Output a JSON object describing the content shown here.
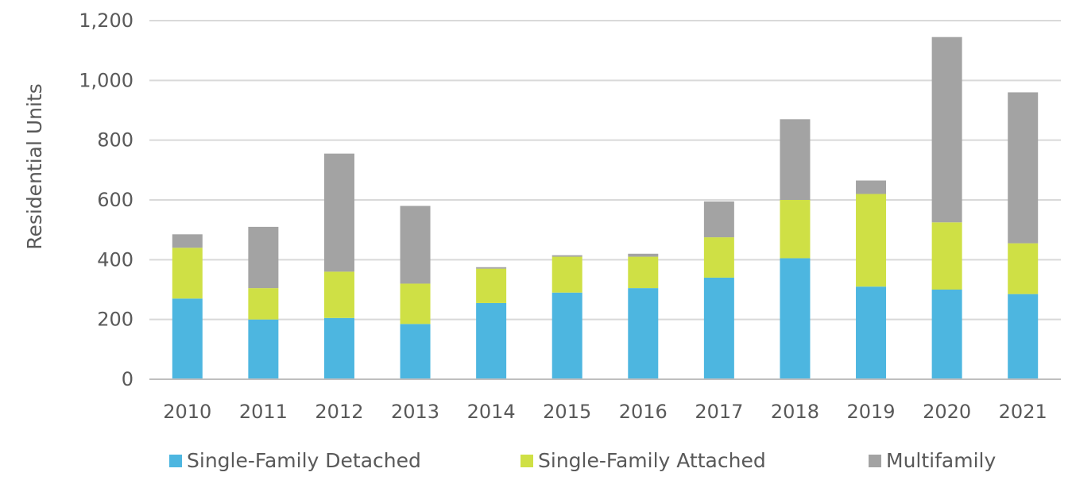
{
  "chart_data": {
    "type": "bar",
    "stacked": true,
    "title": "",
    "xlabel": "",
    "ylabel": "Residential Units",
    "ylim": [
      0,
      1200
    ],
    "yticks": [
      0,
      200,
      400,
      600,
      800,
      1000,
      1200
    ],
    "ytick_labels": [
      "0",
      "200",
      "400",
      "600",
      "800",
      "1,000",
      "1,200"
    ],
    "grid": true,
    "legend_position": "bottom",
    "categories": [
      "2010",
      "2011",
      "2012",
      "2013",
      "2014",
      "2015",
      "2016",
      "2017",
      "2018",
      "2019",
      "2020",
      "2021"
    ],
    "series": [
      {
        "name": "Single-Family Detached",
        "color": "#4DB6E0",
        "values": [
          270,
          200,
          205,
          185,
          255,
          290,
          305,
          340,
          405,
          310,
          300,
          285
        ]
      },
      {
        "name": "Single-Family Attached",
        "color": "#CFE045",
        "values": [
          170,
          105,
          155,
          135,
          115,
          120,
          105,
          135,
          195,
          310,
          225,
          170
        ]
      },
      {
        "name": "Multifamily",
        "color": "#A3A3A3",
        "values": [
          45,
          205,
          395,
          260,
          5,
          5,
          10,
          120,
          270,
          45,
          620,
          505
        ]
      }
    ]
  }
}
